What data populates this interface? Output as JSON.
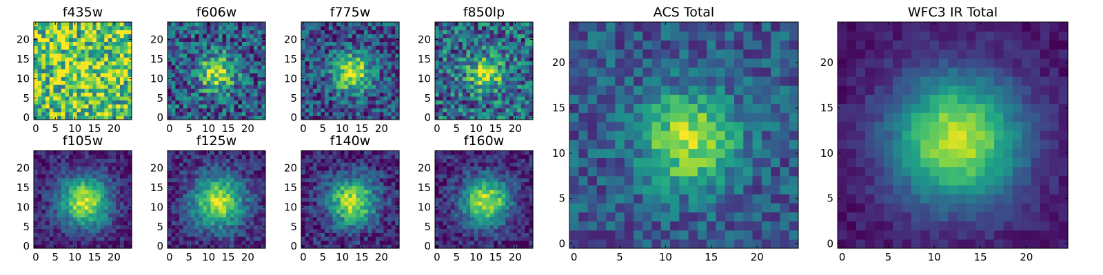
{
  "chart_data": [
    {
      "type": "heatmap",
      "title": "f435w",
      "xticks": [
        "0",
        "5",
        "10",
        "15",
        "20"
      ],
      "yticks": [
        "0",
        "5",
        "10",
        "15",
        "20"
      ],
      "xlim": [
        0,
        25
      ],
      "ylim": [
        0,
        25
      ],
      "grid_size": [
        25,
        25
      ],
      "colormap": "viridis",
      "peak": [
        12,
        12
      ],
      "profile": {
        "amp": 0.12,
        "sigma": 4.5,
        "base": 0.72,
        "noise": 0.38,
        "seed": 11
      }
    },
    {
      "type": "heatmap",
      "title": "f606w",
      "xticks": [
        "0",
        "5",
        "10",
        "15",
        "20"
      ],
      "yticks": [
        "0",
        "5",
        "10",
        "15",
        "20"
      ],
      "xlim": [
        0,
        25
      ],
      "ylim": [
        0,
        25
      ],
      "grid_size": [
        25,
        25
      ],
      "colormap": "viridis",
      "peak": [
        12,
        11.5
      ],
      "profile": {
        "amp": 0.62,
        "sigma": 3.2,
        "base": 0.3,
        "noise": 0.3,
        "seed": 23
      }
    },
    {
      "type": "heatmap",
      "title": "f775w",
      "xticks": [
        "0",
        "5",
        "10",
        "15",
        "20"
      ],
      "yticks": [
        "0",
        "5",
        "10",
        "15",
        "20"
      ],
      "xlim": [
        0,
        25
      ],
      "ylim": [
        0,
        25
      ],
      "grid_size": [
        25,
        25
      ],
      "colormap": "viridis",
      "peak": [
        12.5,
        11.5
      ],
      "profile": {
        "amp": 0.7,
        "sigma": 3.4,
        "base": 0.25,
        "noise": 0.26,
        "seed": 37
      }
    },
    {
      "type": "heatmap",
      "title": "f850lp",
      "xticks": [
        "0",
        "5",
        "10",
        "15",
        "20"
      ],
      "yticks": [
        "0",
        "5",
        "10",
        "15",
        "20"
      ],
      "xlim": [
        0,
        25
      ],
      "ylim": [
        0,
        25
      ],
      "grid_size": [
        25,
        25
      ],
      "colormap": "viridis",
      "peak": [
        12.5,
        11.5
      ],
      "profile": {
        "amp": 0.58,
        "sigma": 3.0,
        "base": 0.35,
        "noise": 0.32,
        "seed": 41
      }
    },
    {
      "type": "heatmap",
      "title": "f105w",
      "xticks": [
        "0",
        "5",
        "10",
        "15",
        "20"
      ],
      "yticks": [
        "0",
        "5",
        "10",
        "15",
        "20"
      ],
      "xlim": [
        0,
        25
      ],
      "ylim": [
        0,
        25
      ],
      "grid_size": [
        25,
        25
      ],
      "colormap": "viridis",
      "peak": [
        12.5,
        11.5
      ],
      "profile": {
        "amp": 0.82,
        "sigma": 4.6,
        "base": 0.1,
        "noise": 0.14,
        "seed": 53
      }
    },
    {
      "type": "heatmap",
      "title": "f125w",
      "xticks": [
        "0",
        "5",
        "10",
        "15",
        "20"
      ],
      "yticks": [
        "0",
        "5",
        "10",
        "15",
        "20"
      ],
      "xlim": [
        0,
        25
      ],
      "ylim": [
        0,
        25
      ],
      "grid_size": [
        25,
        25
      ],
      "colormap": "viridis",
      "peak": [
        12.5,
        11.5
      ],
      "profile": {
        "amp": 0.78,
        "sigma": 4.8,
        "base": 0.12,
        "noise": 0.16,
        "seed": 67
      }
    },
    {
      "type": "heatmap",
      "title": "f140w",
      "xticks": [
        "0",
        "5",
        "10",
        "15",
        "20"
      ],
      "yticks": [
        "0",
        "5",
        "10",
        "15",
        "20"
      ],
      "xlim": [
        0,
        25
      ],
      "ylim": [
        0,
        25
      ],
      "grid_size": [
        25,
        25
      ],
      "colormap": "viridis",
      "peak": [
        12.5,
        11.5
      ],
      "profile": {
        "amp": 0.8,
        "sigma": 4.5,
        "base": 0.1,
        "noise": 0.18,
        "seed": 71
      }
    },
    {
      "type": "heatmap",
      "title": "f160w",
      "xticks": [
        "0",
        "5",
        "10",
        "15",
        "20"
      ],
      "yticks": [
        "0",
        "5",
        "10",
        "15",
        "20"
      ],
      "xlim": [
        0,
        25
      ],
      "ylim": [
        0,
        25
      ],
      "grid_size": [
        25,
        25
      ],
      "colormap": "viridis",
      "peak": [
        12.5,
        11.5
      ],
      "profile": {
        "amp": 0.82,
        "sigma": 4.4,
        "base": 0.1,
        "noise": 0.16,
        "seed": 83
      }
    },
    {
      "type": "heatmap",
      "title": "ACS Total",
      "xticks": [
        "0",
        "5",
        "10",
        "15",
        "20"
      ],
      "yticks": [
        "0",
        "5",
        "10",
        "15",
        "20"
      ],
      "xlim": [
        0,
        25
      ],
      "ylim": [
        0,
        25
      ],
      "grid_size": [
        25,
        25
      ],
      "colormap": "viridis",
      "peak": [
        12.5,
        11.5
      ],
      "profile": {
        "amp": 0.62,
        "sigma": 3.6,
        "base": 0.28,
        "noise": 0.18,
        "seed": 97
      }
    },
    {
      "type": "heatmap",
      "title": "WFC3 IR Total",
      "xticks": [
        "0",
        "5",
        "10",
        "15",
        "20"
      ],
      "yticks": [
        "0",
        "5",
        "10",
        "15",
        "20"
      ],
      "xlim": [
        0,
        25
      ],
      "ylim": [
        0,
        25
      ],
      "grid_size": [
        25,
        25
      ],
      "colormap": "viridis",
      "peak": [
        12.5,
        11.5
      ],
      "profile": {
        "amp": 0.86,
        "sigma": 5.0,
        "base": 0.06,
        "noise": 0.07,
        "seed": 101
      }
    }
  ]
}
